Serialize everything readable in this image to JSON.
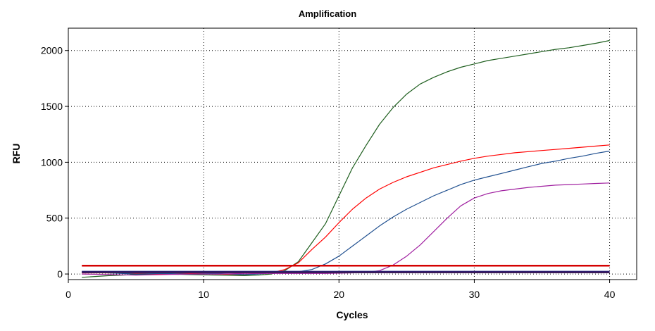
{
  "chart_data": {
    "type": "line",
    "title": "Amplification",
    "xlabel": "Cycles",
    "ylabel": "RFU",
    "xlim": [
      0,
      42
    ],
    "ylim": [
      -50,
      2200
    ],
    "xticks": [
      0,
      10,
      20,
      30,
      40
    ],
    "yticks": [
      0,
      500,
      1000,
      1500,
      2000
    ],
    "grid": true,
    "series": [
      {
        "color": "#1f5f1f",
        "points": [
          [
            1,
            -30
          ],
          [
            3,
            -15
          ],
          [
            5,
            -5
          ],
          [
            7,
            0
          ],
          [
            9,
            -5
          ],
          [
            11,
            -10
          ],
          [
            13,
            -15
          ],
          [
            14,
            -10
          ],
          [
            15,
            0
          ],
          [
            16,
            30
          ],
          [
            17,
            110
          ],
          [
            18,
            280
          ],
          [
            19,
            450
          ],
          [
            20,
            700
          ],
          [
            21,
            950
          ],
          [
            22,
            1150
          ],
          [
            23,
            1340
          ],
          [
            24,
            1490
          ],
          [
            25,
            1610
          ],
          [
            26,
            1700
          ],
          [
            27,
            1760
          ],
          [
            28,
            1810
          ],
          [
            29,
            1850
          ],
          [
            30,
            1880
          ],
          [
            31,
            1910
          ],
          [
            32,
            1930
          ],
          [
            33,
            1950
          ],
          [
            34,
            1970
          ],
          [
            35,
            1990
          ],
          [
            36,
            2010
          ],
          [
            37,
            2025
          ],
          [
            38,
            2045
          ],
          [
            39,
            2065
          ],
          [
            40,
            2090
          ]
        ]
      },
      {
        "color": "#ff0000",
        "points": [
          [
            1,
            10
          ],
          [
            3,
            10
          ],
          [
            5,
            5
          ],
          [
            7,
            0
          ],
          [
            9,
            5
          ],
          [
            11,
            0
          ],
          [
            13,
            -5
          ],
          [
            15,
            10
          ],
          [
            16,
            40
          ],
          [
            17,
            100
          ],
          [
            18,
            220
          ],
          [
            19,
            330
          ],
          [
            20,
            460
          ],
          [
            21,
            580
          ],
          [
            22,
            680
          ],
          [
            23,
            760
          ],
          [
            24,
            820
          ],
          [
            25,
            870
          ],
          [
            26,
            910
          ],
          [
            27,
            950
          ],
          [
            28,
            980
          ],
          [
            29,
            1010
          ],
          [
            30,
            1035
          ],
          [
            31,
            1055
          ],
          [
            32,
            1070
          ],
          [
            33,
            1085
          ],
          [
            34,
            1095
          ],
          [
            35,
            1105
          ],
          [
            36,
            1115
          ],
          [
            37,
            1125
          ],
          [
            38,
            1135
          ],
          [
            39,
            1145
          ],
          [
            40,
            1155
          ]
        ]
      },
      {
        "color": "#1f4f8f",
        "points": [
          [
            1,
            20
          ],
          [
            3,
            10
          ],
          [
            5,
            0
          ],
          [
            7,
            5
          ],
          [
            9,
            0
          ],
          [
            11,
            5
          ],
          [
            13,
            -5
          ],
          [
            14,
            0
          ],
          [
            15,
            10
          ],
          [
            16,
            15
          ],
          [
            17,
            20
          ],
          [
            18,
            40
          ],
          [
            19,
            90
          ],
          [
            20,
            160
          ],
          [
            21,
            250
          ],
          [
            22,
            340
          ],
          [
            23,
            430
          ],
          [
            24,
            510
          ],
          [
            25,
            580
          ],
          [
            26,
            640
          ],
          [
            27,
            700
          ],
          [
            28,
            750
          ],
          [
            29,
            800
          ],
          [
            30,
            840
          ],
          [
            31,
            870
          ],
          [
            32,
            900
          ],
          [
            33,
            930
          ],
          [
            34,
            960
          ],
          [
            35,
            990
          ],
          [
            36,
            1010
          ],
          [
            37,
            1035
          ],
          [
            38,
            1055
          ],
          [
            39,
            1080
          ],
          [
            40,
            1100
          ]
        ]
      },
      {
        "color": "#a020a0",
        "points": [
          [
            1,
            0
          ],
          [
            3,
            -5
          ],
          [
            5,
            -10
          ],
          [
            7,
            -5
          ],
          [
            9,
            0
          ],
          [
            11,
            0
          ],
          [
            13,
            5
          ],
          [
            15,
            5
          ],
          [
            17,
            5
          ],
          [
            19,
            5
          ],
          [
            21,
            10
          ],
          [
            22,
            15
          ],
          [
            23,
            30
          ],
          [
            24,
            80
          ],
          [
            25,
            160
          ],
          [
            26,
            260
          ],
          [
            27,
            380
          ],
          [
            28,
            500
          ],
          [
            29,
            610
          ],
          [
            30,
            680
          ],
          [
            31,
            720
          ],
          [
            32,
            745
          ],
          [
            33,
            760
          ],
          [
            34,
            775
          ],
          [
            35,
            785
          ],
          [
            36,
            795
          ],
          [
            37,
            800
          ],
          [
            38,
            805
          ],
          [
            39,
            810
          ],
          [
            40,
            815
          ]
        ]
      },
      {
        "color": "#d40000",
        "points": [
          [
            1,
            75
          ],
          [
            40,
            75
          ]
        ]
      },
      {
        "color": "#202080",
        "points": [
          [
            1,
            20
          ],
          [
            40,
            20
          ]
        ]
      },
      {
        "color": "#3a1a5a",
        "points": [
          [
            1,
            15
          ],
          [
            40,
            15
          ]
        ]
      }
    ]
  }
}
